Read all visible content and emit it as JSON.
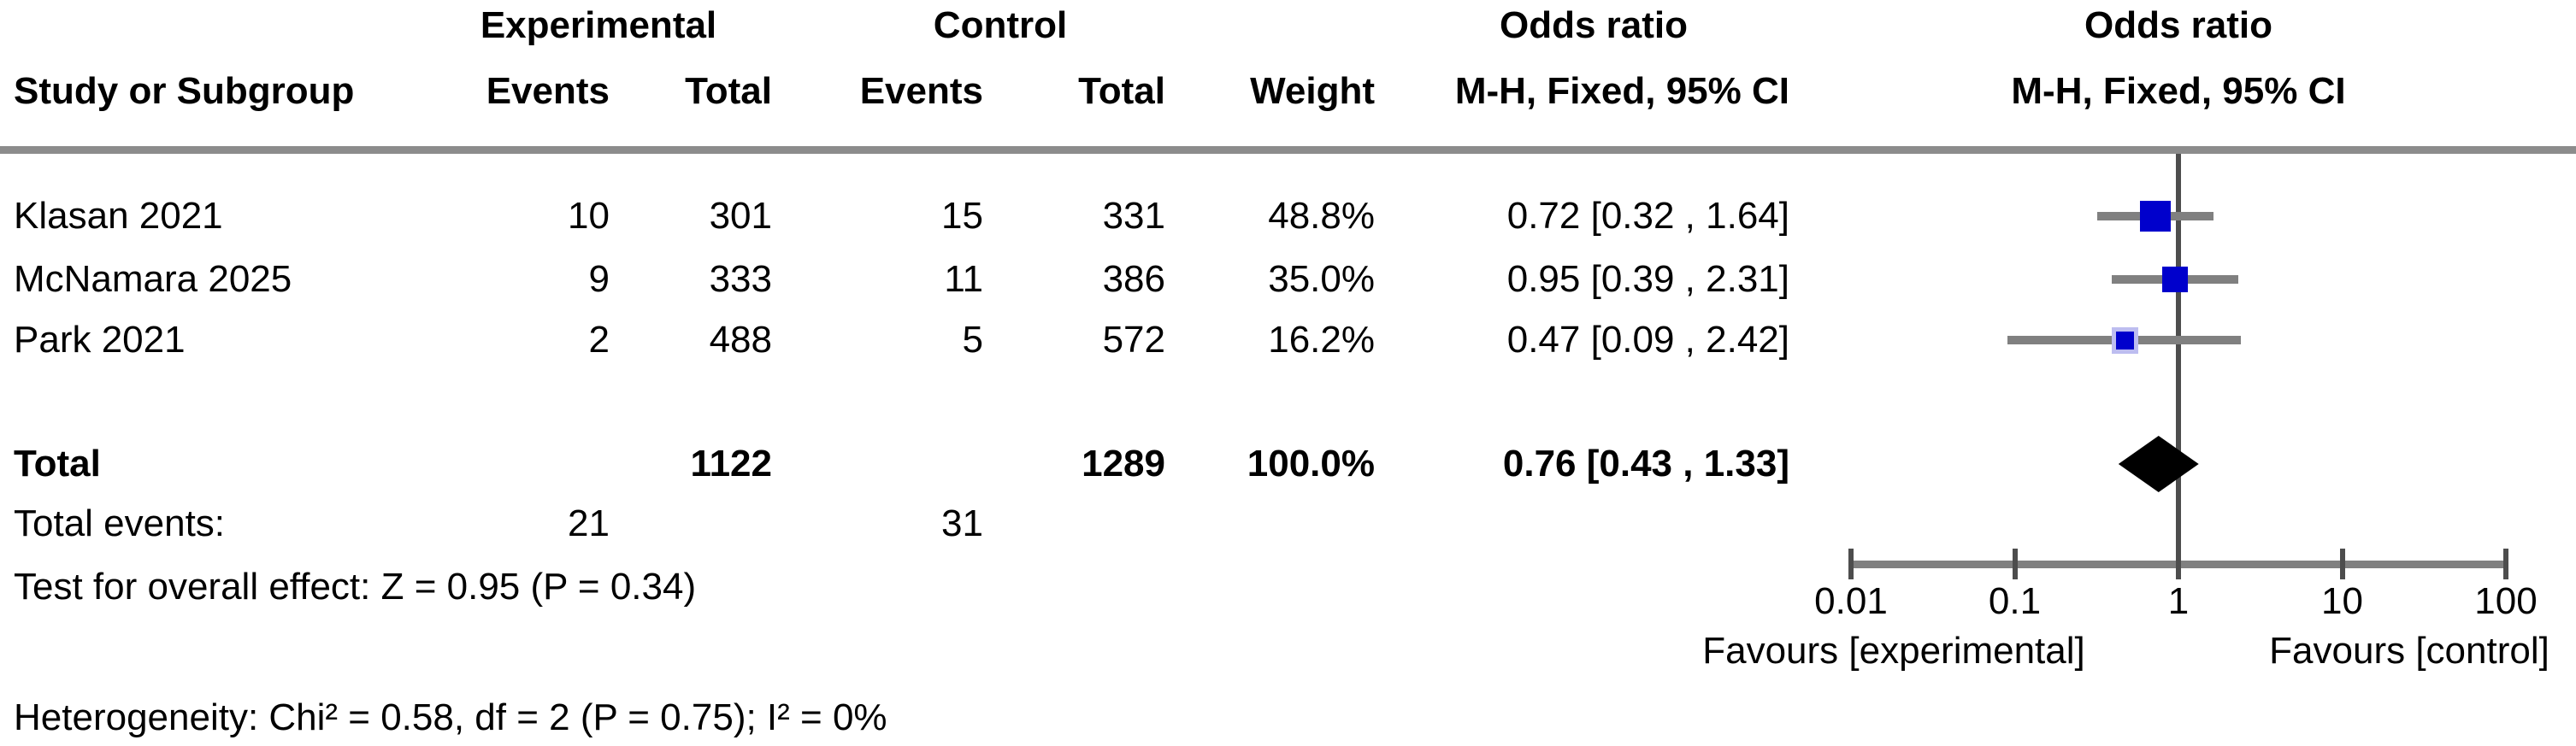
{
  "figure": {
    "headers": {
      "group_experimental": "Experimental",
      "group_control": "Control",
      "odds_ratio_text_col": "Odds ratio",
      "odds_ratio_plot_col": "Odds ratio",
      "method_text_col": "M-H, Fixed, 95% CI",
      "method_plot_col": "M-H, Fixed, 95% CI",
      "study": "Study or Subgroup",
      "events_experimental": "Events",
      "total_experimental": "Total",
      "events_control": "Events",
      "total_control": "Total",
      "weight": "Weight"
    }
  },
  "chart_data": {
    "type": "forest",
    "effect_measure": "Odds ratio",
    "model": "M-H, Fixed, 95% CI",
    "studies": [
      {
        "study": "Klasan 2021",
        "exp_events": 10,
        "exp_total": 301,
        "ctl_events": 15,
        "ctl_total": 331,
        "weight_pct": 48.8,
        "weight_label": "48.8%",
        "or": 0.72,
        "ci_low": 0.32,
        "ci_high": 1.64,
        "ci_label": "0.72 [0.32 , 1.64]"
      },
      {
        "study": "McNamara 2025",
        "exp_events": 9,
        "exp_total": 333,
        "ctl_events": 11,
        "ctl_total": 386,
        "weight_pct": 35.0,
        "weight_label": "35.0%",
        "or": 0.95,
        "ci_low": 0.39,
        "ci_high": 2.31,
        "ci_label": "0.95 [0.39 , 2.31]"
      },
      {
        "study": "Park 2021",
        "exp_events": 2,
        "exp_total": 488,
        "ctl_events": 5,
        "ctl_total": 572,
        "weight_pct": 16.2,
        "weight_label": "16.2%",
        "or": 0.47,
        "ci_low": 0.09,
        "ci_high": 2.42,
        "ci_label": "0.47 [0.09 , 2.42]"
      }
    ],
    "total": {
      "label": "Total",
      "exp_total": 1122,
      "ctl_total": 1289,
      "weight_label": "100.0%",
      "or": 0.76,
      "ci_low": 0.43,
      "ci_high": 1.33,
      "ci_label": "0.76 [0.43 , 1.33]"
    },
    "total_events": {
      "label": "Total events:",
      "experimental": 21,
      "control": 31
    },
    "overall_effect_text": "Test for overall effect: Z = 0.95 (P = 0.34)",
    "heterogeneity_text": "Heterogeneity: Chi² = 0.58, df = 2 (P = 0.75); I² = 0%",
    "axis": {
      "scale": "log10",
      "xlim": [
        0.01,
        100
      ],
      "ticks": [
        0.01,
        0.1,
        1,
        10,
        100
      ],
      "tick_labels": [
        "0.01",
        "0.1",
        "1",
        "10",
        "100"
      ],
      "favours_left": "Favours [experimental]",
      "favours_right": "Favours [control]"
    },
    "colors": {
      "square": "#0000cc",
      "square_halo": "#bdbdf0",
      "ci_line": "#808080",
      "axis_line": "#808080",
      "center_line": "#4d4d4d",
      "tick": "#4d4d4d",
      "separator": "#8c8c8c",
      "diamond": "#000000",
      "text": "#000000"
    }
  }
}
